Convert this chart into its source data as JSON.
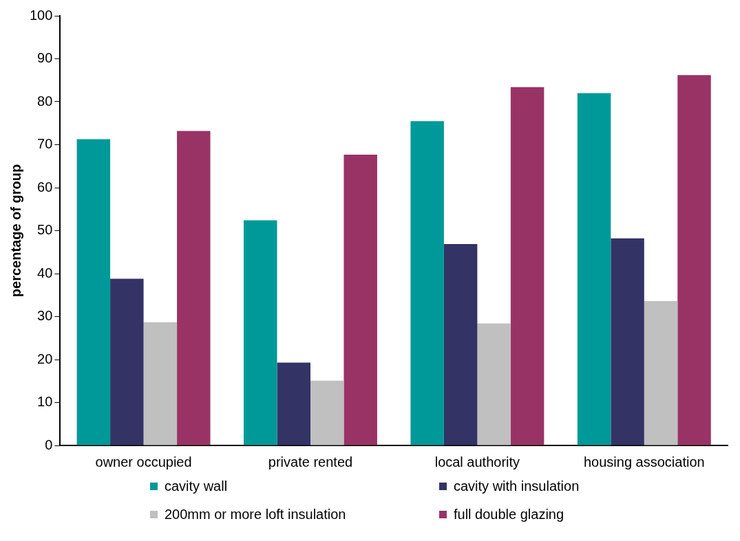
{
  "chart_data": {
    "type": "bar",
    "ylabel": "percentage of group",
    "categories": [
      "owner occupied",
      "private rented",
      "local authority",
      "housing association"
    ],
    "series": [
      {
        "name": "cavity wall",
        "color": "#009999",
        "values": [
          71.3,
          52.4,
          75.5,
          82
        ]
      },
      {
        "name": "cavity with insulation",
        "color": "#333366",
        "values": [
          38.8,
          19.3,
          46.9,
          48.2
        ]
      },
      {
        "name": "200mm or more loft insulation",
        "color": "#c0c0c0",
        "values": [
          28.7,
          15.1,
          28.4,
          33.6
        ]
      },
      {
        "name": "full double glazing",
        "color": "#993366",
        "values": [
          73.2,
          67.7,
          83.4,
          86.2
        ]
      }
    ],
    "ylim": [
      0,
      100
    ],
    "yticks": [
      0,
      10,
      20,
      30,
      40,
      50,
      60,
      70,
      80,
      90,
      100
    ],
    "grid": false,
    "legend": "bottom"
  }
}
